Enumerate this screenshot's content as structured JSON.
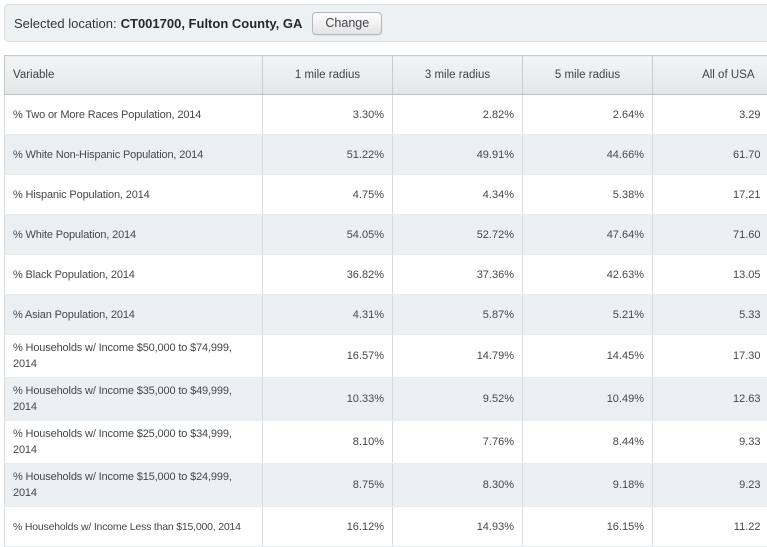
{
  "location_bar": {
    "label": "Selected location:",
    "location": "CT001700, Fulton County, GA",
    "change_button_label": "Change"
  },
  "table": {
    "columns": [
      "Variable",
      "1 mile radius",
      "3 mile radius",
      "5 mile radius",
      "All of USA"
    ],
    "rows": [
      {
        "variable": "% Two or More Races Population, 2014",
        "values": [
          "3.30%",
          "2.82%",
          "2.64%",
          "3.29"
        ]
      },
      {
        "variable": "% White Non-Hispanic Population, 2014",
        "values": [
          "51.22%",
          "49.91%",
          "44.66%",
          "61.70"
        ]
      },
      {
        "variable": "% Hispanic Population, 2014",
        "values": [
          "4.75%",
          "4.34%",
          "5.38%",
          "17.21"
        ]
      },
      {
        "variable": "% White Population, 2014",
        "values": [
          "54.05%",
          "52.72%",
          "47.64%",
          "71.60"
        ]
      },
      {
        "variable": "% Black Population, 2014",
        "values": [
          "36.82%",
          "37.36%",
          "42.63%",
          "13.05"
        ]
      },
      {
        "variable": "% Asian Population, 2014",
        "values": [
          "4.31%",
          "5.87%",
          "5.21%",
          "5.33"
        ]
      },
      {
        "variable": "% Households w/ Income $50,000 to $74,999, 2014",
        "values": [
          "16.57%",
          "14.79%",
          "14.45%",
          "17.30"
        ]
      },
      {
        "variable": "% Households w/ Income $35,000 to $49,999, 2014",
        "values": [
          "10.33%",
          "9.52%",
          "10.49%",
          "12.63"
        ]
      },
      {
        "variable": "% Households w/ Income $25,000 to $34,999, 2014",
        "values": [
          "8.10%",
          "7.76%",
          "8.44%",
          "9.33"
        ]
      },
      {
        "variable": "% Households w/ Income $15,000 to $24,999, 2014",
        "values": [
          "8.75%",
          "8.30%",
          "9.18%",
          "9.23"
        ]
      },
      {
        "variable": "% Households w/ Income Less than $15,000, 2014",
        "values": [
          "16.12%",
          "14.93%",
          "16.15%",
          "11.22"
        ]
      }
    ]
  },
  "colors": {
    "row_stripe": "#edf0f3",
    "header_bg": "#e8ebed",
    "grid_border": "#d8dbdd",
    "bar_bg": "#eef1f2"
  }
}
